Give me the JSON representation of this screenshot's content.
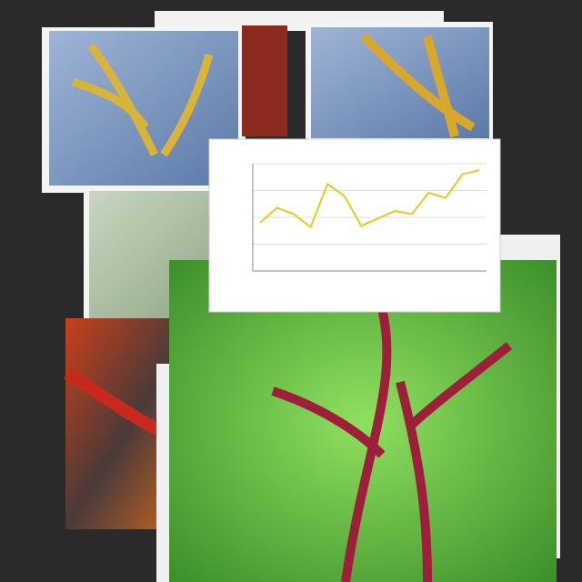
{
  "chart_data": {
    "type": "line",
    "values": [
      45,
      59,
      53,
      41,
      81,
      70,
      42,
      49,
      56,
      53,
      73,
      68,
      90,
      94
    ],
    "color": "#e8c81a",
    "ylim": [
      0,
      100
    ],
    "yticks": [
      0,
      25,
      50,
      75,
      100
    ],
    "grid": true
  }
}
